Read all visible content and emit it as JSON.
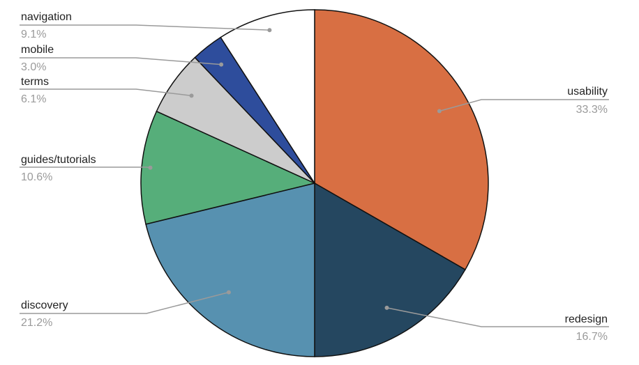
{
  "chart_data": {
    "type": "pie",
    "title": "",
    "start_angle_deg": 0,
    "direction": "clockwise",
    "slices": [
      {
        "label": "usability",
        "value": 33.3,
        "pct_label": "33.3%",
        "color": "#d86f43"
      },
      {
        "label": "redesign",
        "value": 16.7,
        "pct_label": "16.7%",
        "color": "#254760"
      },
      {
        "label": "discovery",
        "value": 21.2,
        "pct_label": "21.2%",
        "color": "#5791b0"
      },
      {
        "label": "guides/tutorials",
        "value": 10.6,
        "pct_label": "10.6%",
        "color": "#56ae7a"
      },
      {
        "label": "terms",
        "value": 6.1,
        "pct_label": "6.1%",
        "color": "#cccccc"
      },
      {
        "label": "mobile",
        "value": 3.0,
        "pct_label": "3.0%",
        "color": "#2e4d9c"
      },
      {
        "label": "navigation",
        "value": 9.1,
        "pct_label": "9.1%",
        "color": "#ffffff"
      }
    ],
    "legend": "none",
    "label_style": "outside leader lines with name and percentage"
  }
}
